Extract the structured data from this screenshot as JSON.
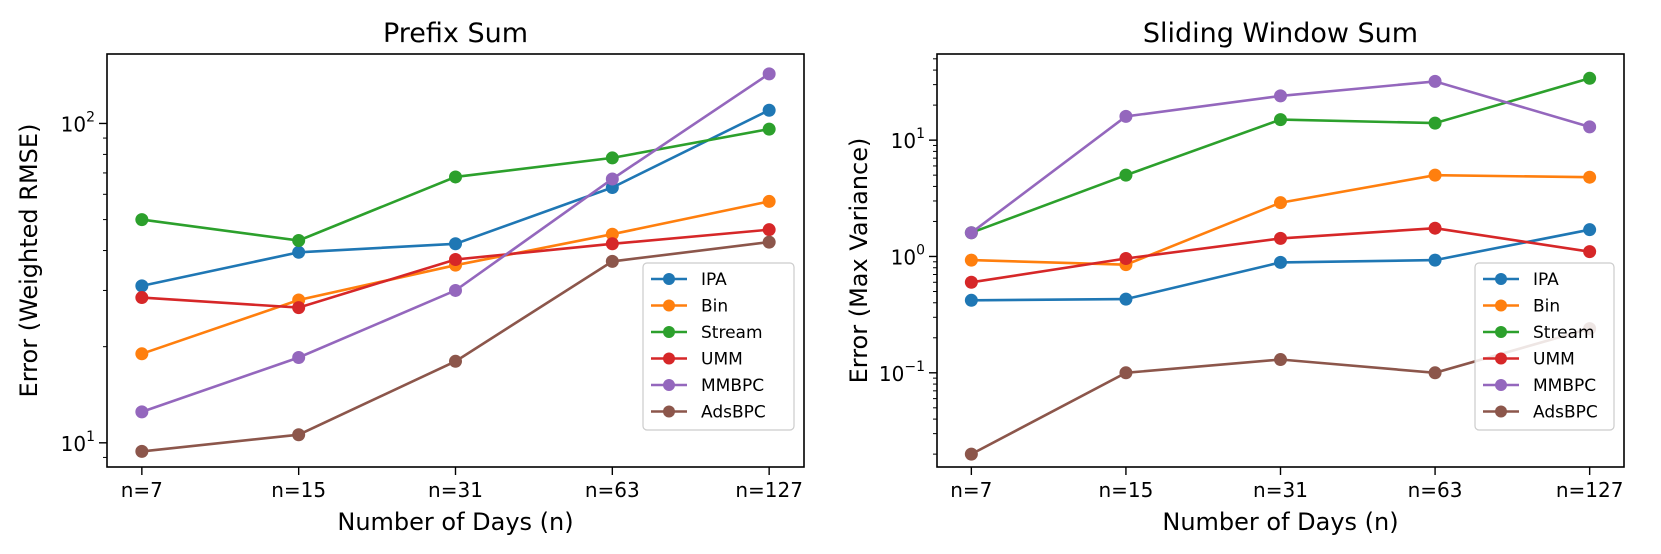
{
  "chart_data": [
    {
      "type": "line",
      "title": "Prefix Sum",
      "xlabel": "Number of Days (n)",
      "ylabel": "Error (Weighted RMSE)",
      "yscale": "log",
      "ylim": [
        8.4,
        165
      ],
      "categories": [
        "n=7",
        "n=15",
        "n=31",
        "n=63",
        "n=127"
      ],
      "yticks": [
        {
          "value": 10,
          "base": "10",
          "exp": "1"
        },
        {
          "value": 100,
          "base": "10",
          "exp": "2"
        }
      ],
      "legend_position": "lower-right",
      "series": [
        {
          "name": "IPA",
          "color": "#1f77b4",
          "values": [
            31,
            39.5,
            42,
            63,
            110
          ]
        },
        {
          "name": "Bin",
          "color": "#ff7f0e",
          "values": [
            19,
            28,
            36,
            45,
            57
          ]
        },
        {
          "name": "Stream",
          "color": "#2ca02c",
          "values": [
            50,
            43,
            68,
            78,
            96
          ]
        },
        {
          "name": "UMM",
          "color": "#d62728",
          "values": [
            28.5,
            26.5,
            37.5,
            42,
            46.5
          ]
        },
        {
          "name": "MMBPC",
          "color": "#9467bd",
          "values": [
            12.5,
            18.5,
            30,
            67,
            143
          ]
        },
        {
          "name": "AdsBPC",
          "color": "#8c564b",
          "values": [
            9.4,
            10.6,
            18,
            37,
            42.5
          ]
        }
      ]
    },
    {
      "type": "line",
      "title": "Sliding Window Sum",
      "xlabel": "Number of Days (n)",
      "ylabel": "Error (Max Variance)",
      "yscale": "log",
      "ylim": [
        0.0155,
        55
      ],
      "categories": [
        "n=7",
        "n=15",
        "n=31",
        "n=63",
        "n=127"
      ],
      "yticks": [
        {
          "value": 0.1,
          "base": "10",
          "exp": "−1"
        },
        {
          "value": 1,
          "base": "10",
          "exp": "0"
        },
        {
          "value": 10,
          "base": "10",
          "exp": "1"
        }
      ],
      "legend_position": "lower-right",
      "series": [
        {
          "name": "IPA",
          "color": "#1f77b4",
          "values": [
            0.42,
            0.43,
            0.89,
            0.93,
            1.7
          ]
        },
        {
          "name": "Bin",
          "color": "#ff7f0e",
          "values": [
            0.93,
            0.85,
            2.9,
            5.0,
            4.8
          ]
        },
        {
          "name": "Stream",
          "color": "#2ca02c",
          "values": [
            1.6,
            5.0,
            15,
            14,
            34
          ]
        },
        {
          "name": "UMM",
          "color": "#d62728",
          "values": [
            0.6,
            0.96,
            1.43,
            1.75,
            1.1
          ]
        },
        {
          "name": "MMBPC",
          "color": "#9467bd",
          "values": [
            1.6,
            16,
            24,
            32,
            13
          ]
        },
        {
          "name": "AdsBPC",
          "color": "#8c564b",
          "values": [
            0.02,
            0.1,
            0.13,
            0.1,
            0.24
          ]
        }
      ]
    }
  ]
}
